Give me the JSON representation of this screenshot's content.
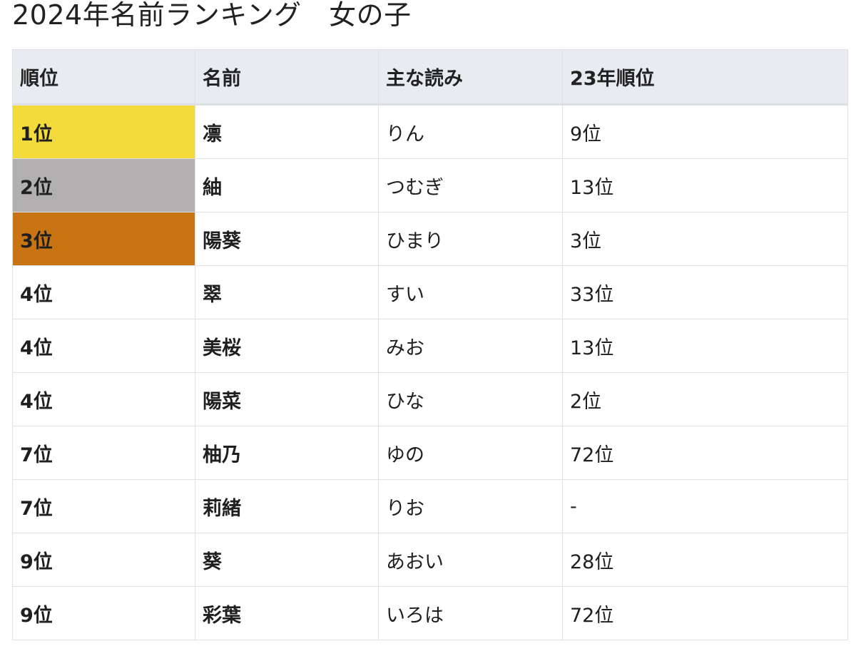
{
  "page": {
    "title": "2024年名前ランキング　女の子"
  },
  "table": {
    "headers": [
      "順位",
      "名前",
      "主な読み",
      "23年順位"
    ],
    "rows": [
      {
        "rank": "1位",
        "name": "凛",
        "reading": "りん",
        "prev": "9位",
        "highlight": "#f2db3a"
      },
      {
        "rank": "2位",
        "name": "紬",
        "reading": "つむぎ",
        "prev": "13位",
        "highlight": "#b1afb0"
      },
      {
        "rank": "3位",
        "name": "陽葵",
        "reading": "ひまり",
        "prev": "3位",
        "highlight": "#c87413"
      },
      {
        "rank": "4位",
        "name": "翠",
        "reading": "すい",
        "prev": "33位",
        "highlight": null
      },
      {
        "rank": "4位",
        "name": "美桜",
        "reading": "みお",
        "prev": "13位",
        "highlight": null
      },
      {
        "rank": "4位",
        "name": "陽菜",
        "reading": "ひな",
        "prev": "2位",
        "highlight": null
      },
      {
        "rank": "7位",
        "name": "柚乃",
        "reading": "ゆの",
        "prev": "72位",
        "highlight": null
      },
      {
        "rank": "7位",
        "name": "莉緒",
        "reading": "りお",
        "prev": "-",
        "highlight": null
      },
      {
        "rank": "9位",
        "name": "葵",
        "reading": "あおい",
        "prev": "28位",
        "highlight": null
      },
      {
        "rank": "9位",
        "name": "彩葉",
        "reading": "いろは",
        "prev": "72位",
        "highlight": null
      }
    ]
  },
  "colors": {
    "gold": "#f2db3a",
    "silver": "#b1afb0",
    "bronze": "#c87413",
    "header_bg": "#e8ebef",
    "border": "#dde1e6"
  }
}
